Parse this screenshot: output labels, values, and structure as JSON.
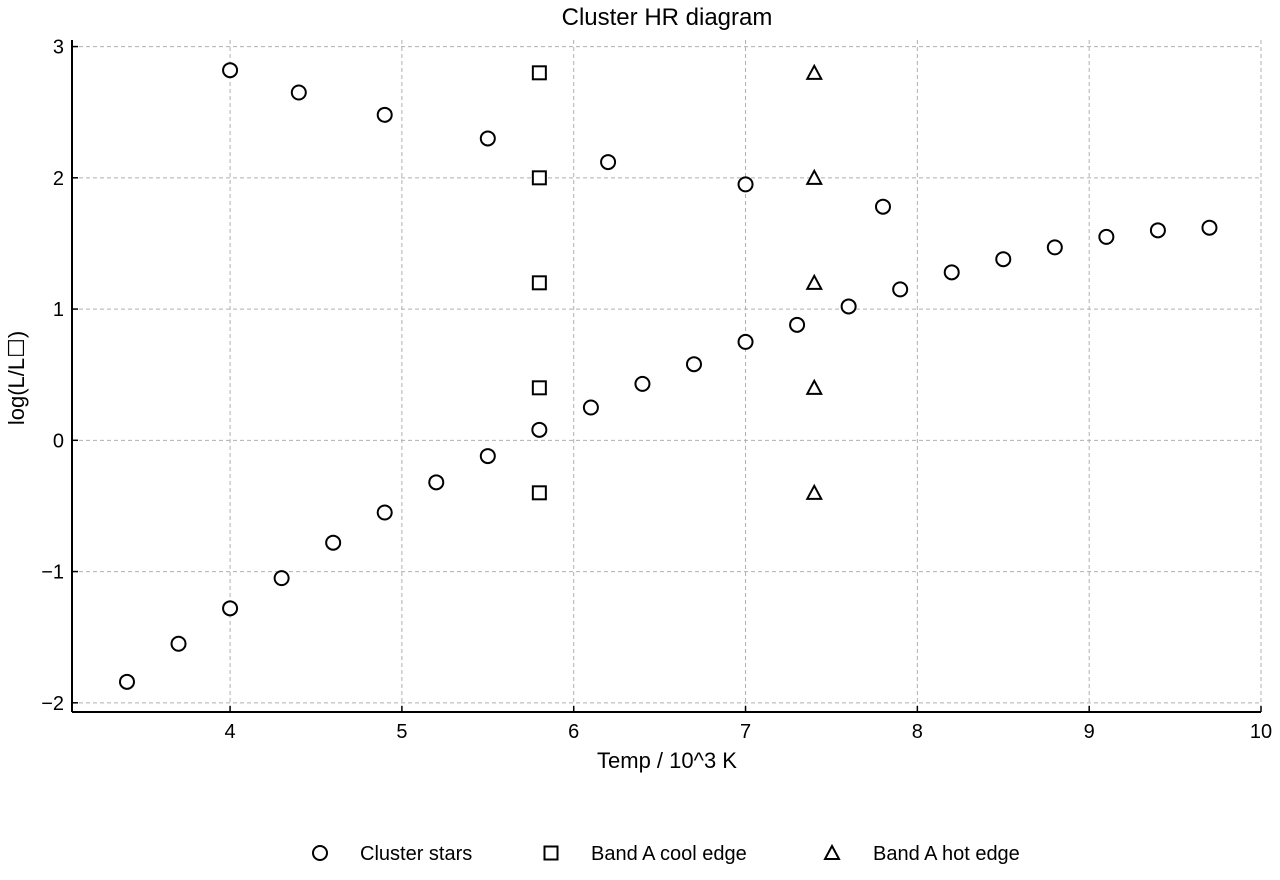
{
  "chart_data": {
    "type": "scatter",
    "title": "Cluster HR diagram",
    "xlabel": "Temp / 10^3 K",
    "ylabel": "log(L/L☐)",
    "xlim": [
      3.08,
      10.0
    ],
    "ylim": [
      -2.07,
      3.05
    ],
    "xticks": [
      4,
      5,
      6,
      7,
      8,
      9,
      10
    ],
    "xtick_labels": [
      "4",
      "5",
      "6",
      "7",
      "8",
      "9",
      "10"
    ],
    "yticks": [
      -2,
      -1,
      0,
      1,
      2,
      3
    ],
    "ytick_labels": [
      "−2",
      "−1",
      "0",
      "1",
      "2",
      "3"
    ],
    "grid": true,
    "legend_position": "bottom-center",
    "series": [
      {
        "name": "Cluster stars",
        "marker": "circle",
        "x": [
          3.4,
          3.7,
          4.0,
          4.3,
          4.6,
          4.9,
          5.2,
          5.5,
          5.8,
          6.1,
          6.4,
          6.7,
          7.0,
          7.3,
          7.6,
          7.9,
          8.2,
          8.5,
          8.8,
          9.1,
          9.4,
          9.7,
          4.0,
          4.4,
          4.9,
          5.5,
          6.2,
          7.0,
          7.8
        ],
        "y": [
          -1.84,
          -1.55,
          -1.28,
          -1.05,
          -0.78,
          -0.55,
          -0.32,
          -0.12,
          0.08,
          0.25,
          0.43,
          0.58,
          0.75,
          0.88,
          1.02,
          1.15,
          1.28,
          1.38,
          1.47,
          1.55,
          1.6,
          1.62,
          2.82,
          2.65,
          2.48,
          2.3,
          2.12,
          1.95,
          1.78
        ]
      },
      {
        "name": "Band A cool edge",
        "marker": "square",
        "x": [
          5.8,
          5.8,
          5.8,
          5.8,
          5.8
        ],
        "y": [
          2.8,
          2.0,
          1.2,
          0.4,
          -0.4
        ]
      },
      {
        "name": "Band A hot edge",
        "marker": "triangle",
        "x": [
          7.4,
          7.4,
          7.4,
          7.4,
          7.4
        ],
        "y": [
          2.8,
          2.0,
          1.2,
          0.4,
          -0.4
        ]
      }
    ]
  }
}
